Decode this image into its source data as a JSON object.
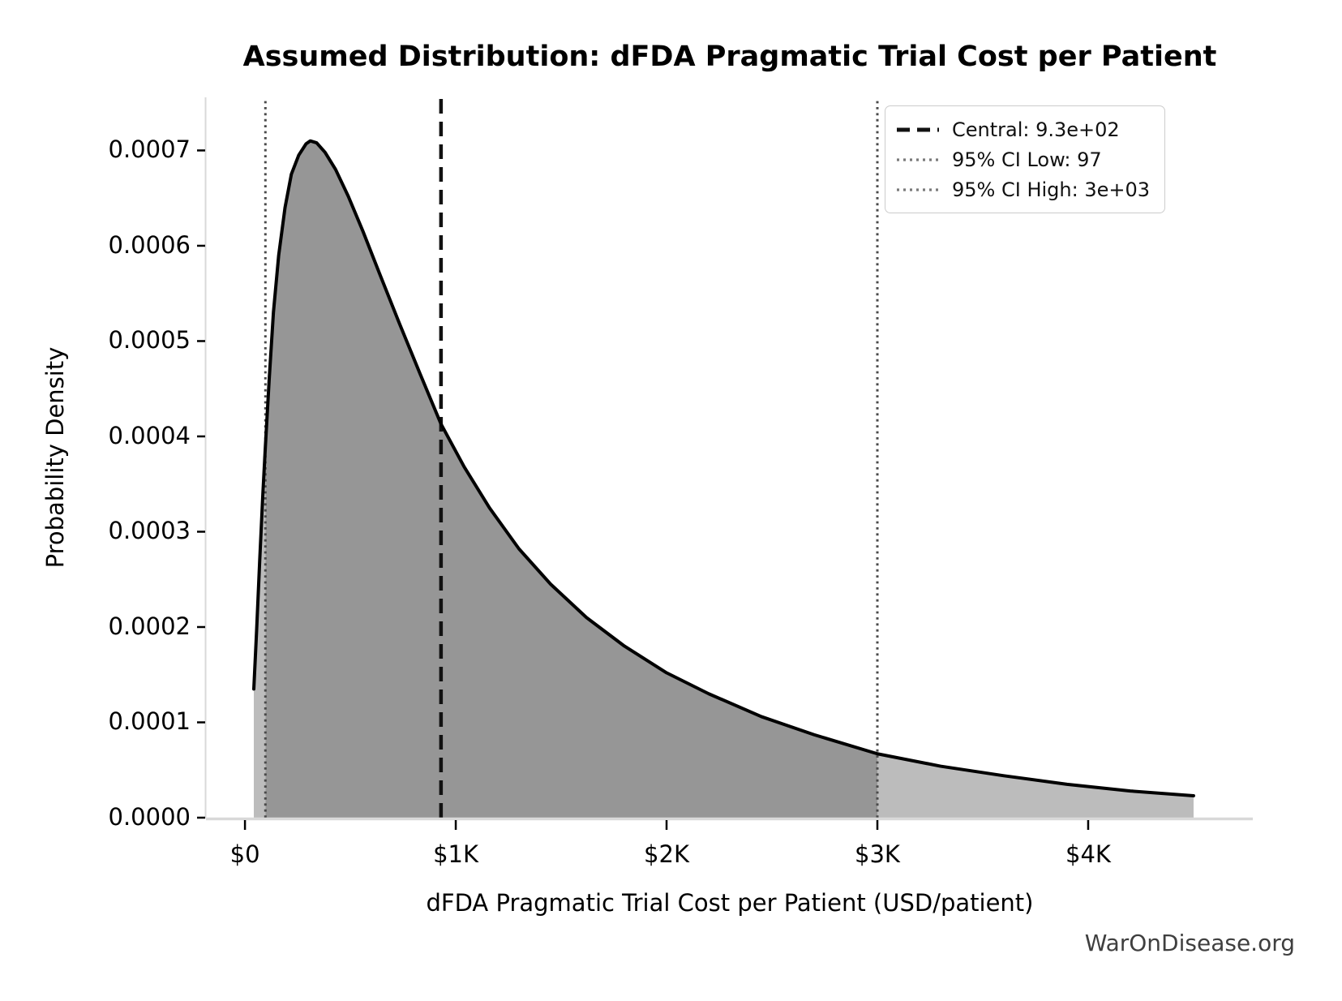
{
  "watermark": "WarOnDisease.org",
  "chart_data": {
    "type": "area",
    "title": "Assumed Distribution: dFDA Pragmatic Trial Cost per Patient",
    "xlabel": "dFDA Pragmatic Trial Cost per Patient (USD/patient)",
    "ylabel": "Probability Density",
    "x_ticks": [
      {
        "v": 0,
        "label": "$0"
      },
      {
        "v": 1000,
        "label": "$1K"
      },
      {
        "v": 2000,
        "label": "$2K"
      },
      {
        "v": 3000,
        "label": "$3K"
      },
      {
        "v": 4000,
        "label": "$4K"
      }
    ],
    "y_ticks": [
      {
        "v": 0.0,
        "label": "0.0000"
      },
      {
        "v": 0.0001,
        "label": "0.0001"
      },
      {
        "v": 0.0002,
        "label": "0.0002"
      },
      {
        "v": 0.0003,
        "label": "0.0003"
      },
      {
        "v": 0.0004,
        "label": "0.0004"
      },
      {
        "v": 0.0005,
        "label": "0.0005"
      },
      {
        "v": 0.0006,
        "label": "0.0006"
      },
      {
        "v": 0.0007,
        "label": "0.0007"
      }
    ],
    "xlim": [
      -185,
      4781
    ],
    "ylim": [
      0,
      0.0007557
    ],
    "grid": false,
    "legend_position": "upper right",
    "line_color": "#000000",
    "fill_inside_ci": "#969696",
    "fill_outside_ci": "#bcbcbc",
    "central_value": 930,
    "ci_interval": [
      97,
      3000
    ],
    "vlines": {
      "central": {
        "value": 930,
        "style": "dashed",
        "color": "#111111"
      },
      "ci_low": {
        "value": 97,
        "style": "dotted",
        "color": "#4a4a4a"
      },
      "ci_high": {
        "value": 3000,
        "style": "dotted",
        "color": "#4a4a4a"
      }
    },
    "legend": {
      "items": [
        {
          "label": "Central: 9.3e+02",
          "style": "dashed",
          "color": "#111111"
        },
        {
          "label": "95% CI Low: 97",
          "style": "dotted",
          "color": "#7a7a7a"
        },
        {
          "label": "95% CI High: 3e+03",
          "style": "dotted",
          "color": "#7a7a7a"
        }
      ]
    },
    "curve": {
      "x": [
        42,
        55,
        70,
        85,
        97,
        115,
        135,
        160,
        190,
        220,
        255,
        290,
        310,
        340,
        380,
        430,
        490,
        560,
        640,
        730,
        830,
        930,
        1040,
        1160,
        1300,
        1450,
        1620,
        1800,
        2000,
        2200,
        2450,
        2700,
        3000,
        3300,
        3600,
        3900,
        4200,
        4500
      ],
      "density": [
        0.000135,
        0.000195,
        0.00027,
        0.00034,
        0.00039,
        0.00046,
        0.00053,
        0.00059,
        0.00064,
        0.000675,
        0.000695,
        0.000707,
        0.00071,
        0.000708,
        0.000698,
        0.00068,
        0.000652,
        0.000615,
        0.00057,
        0.00052,
        0.000466,
        0.000413,
        0.000368,
        0.000325,
        0.000282,
        0.000245,
        0.00021,
        0.00018,
        0.000152,
        0.00013,
        0.000106,
        8.7e-05,
        6.7e-05,
        5.4e-05,
        4.4e-05,
        3.5e-05,
        2.8e-05,
        2.3e-05
      ]
    }
  }
}
